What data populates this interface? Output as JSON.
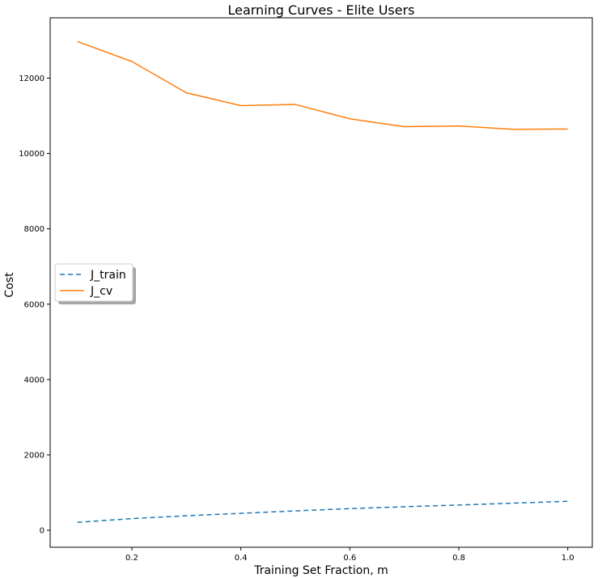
{
  "chart_data": {
    "type": "line",
    "title": "Learning Curves - Elite Users",
    "xlabel": "Training Set Fraction, m",
    "ylabel": "Cost",
    "xlim": [
      0.05,
      1.045
    ],
    "ylim": [
      -450,
      13600
    ],
    "xticks": [
      0.2,
      0.4,
      0.6,
      0.8,
      1.0
    ],
    "xtick_labels": [
      "0.2",
      "0.4",
      "0.6",
      "0.8",
      "1.0"
    ],
    "yticks": [
      0,
      2000,
      4000,
      6000,
      8000,
      10000,
      12000
    ],
    "ytick_labels": [
      "0",
      "2000",
      "4000",
      "6000",
      "8000",
      "10000",
      "12000"
    ],
    "x": [
      0.1,
      0.2,
      0.3,
      0.4,
      0.5,
      0.6,
      0.7,
      0.8,
      0.9,
      1.0
    ],
    "series": [
      {
        "name": "J_train",
        "color": "#1f77b4",
        "dashed": true,
        "values": [
          210,
          310,
          385,
          450,
          515,
          575,
          625,
          670,
          720,
          770
        ]
      },
      {
        "name": "J_cv",
        "color": "#ff7f0e",
        "dashed": false,
        "values": [
          12970,
          12440,
          11610,
          11270,
          11300,
          10920,
          10710,
          10730,
          10640,
          10650
        ]
      }
    ],
    "legend_position": "center-left",
    "grid": false
  }
}
